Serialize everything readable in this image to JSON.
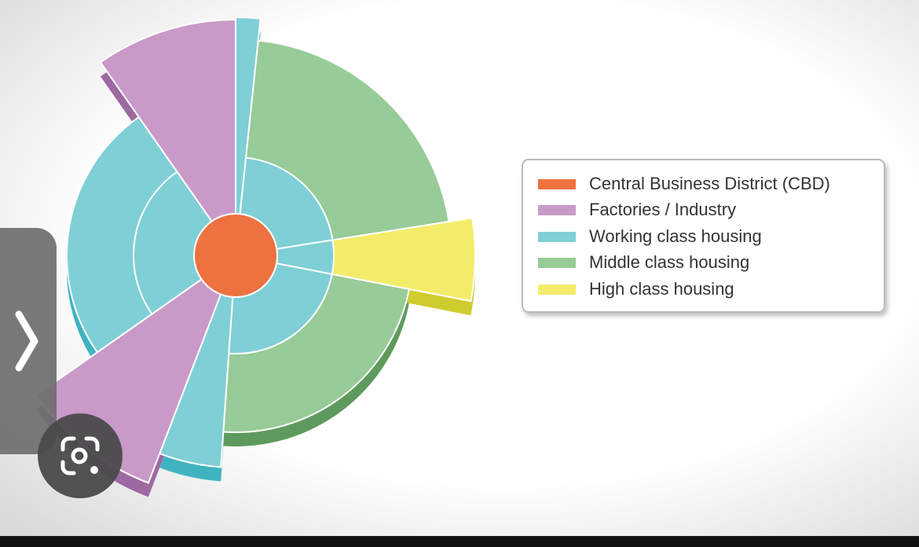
{
  "legend": {
    "items": [
      {
        "label": "Central Business District (CBD)"
      },
      {
        "label": "Factories / Industry"
      },
      {
        "label": "Working class housing"
      },
      {
        "label": "Middle class housing"
      },
      {
        "label": "High class housing"
      }
    ]
  }
}
